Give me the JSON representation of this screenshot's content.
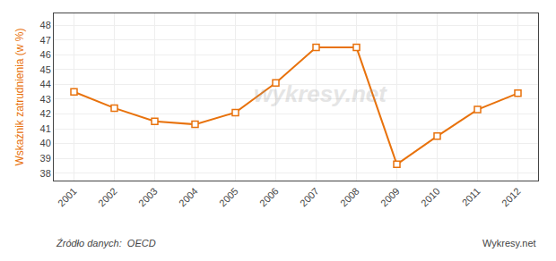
{
  "chart_data": {
    "type": "line",
    "x": [
      2001,
      2002,
      2003,
      2004,
      2005,
      2006,
      2007,
      2008,
      2009,
      2010,
      2011,
      2012
    ],
    "values": [
      43.5,
      42.4,
      41.5,
      41.3,
      42.1,
      44.1,
      46.5,
      46.5,
      38.6,
      40.5,
      42.3,
      43.4
    ],
    "color": "#e8720c",
    "marker": "square",
    "ylabel": "Wskaźnik zatrudnienia (w %)",
    "xlim": [
      2000.5,
      2012.5
    ],
    "xticks": [
      2001,
      2002,
      2003,
      2004,
      2005,
      2006,
      2007,
      2008,
      2009,
      2010,
      2011,
      2012
    ],
    "ylim": [
      37.5,
      48.8
    ],
    "yticks": [
      38,
      39,
      40,
      41,
      42,
      43,
      44,
      45,
      46,
      47,
      48
    ],
    "grid": true,
    "annotations": [
      "wykresy.net",
      "Źródło danych:  OECD",
      "Wykresy.net"
    ]
  }
}
